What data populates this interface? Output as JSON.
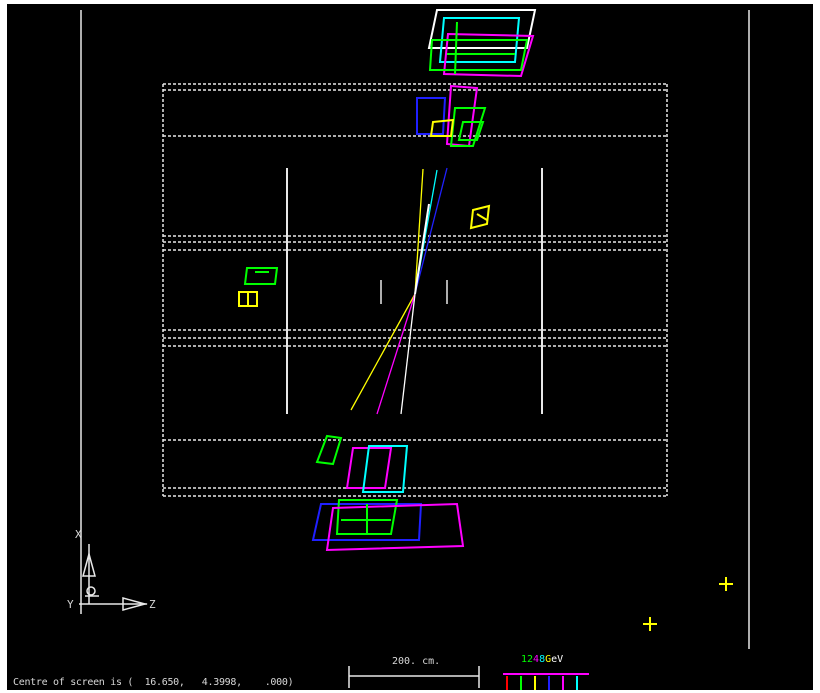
{
  "status_bar": {
    "centre_text": "Centre of screen is (  16.650,   4.3998,    .000)"
  },
  "scale_bar": {
    "label": "200. cm."
  },
  "axes": {
    "x": "X",
    "y": "Y",
    "z": "Z"
  },
  "energy_legend": {
    "parts": [
      {
        "text": "12",
        "color": "#00ff00"
      },
      {
        "text": "4",
        "color": "#ff00ff"
      },
      {
        "text": "8",
        "color": "#00ffff"
      },
      {
        "text": "G",
        "color": "#ffff00"
      },
      {
        "text": "e",
        "color": "#ffffff"
      },
      {
        "text": "V",
        "color": "#ffffff"
      }
    ]
  },
  "colors": {
    "background": "#000000",
    "detector": "#e8e8e8",
    "green": "#00ff00",
    "magenta": "#ff00ff",
    "cyan": "#00ffff",
    "yellow": "#ffff00",
    "blue": "#2020ff",
    "white": "#ffffff",
    "red": "#ff0000"
  }
}
